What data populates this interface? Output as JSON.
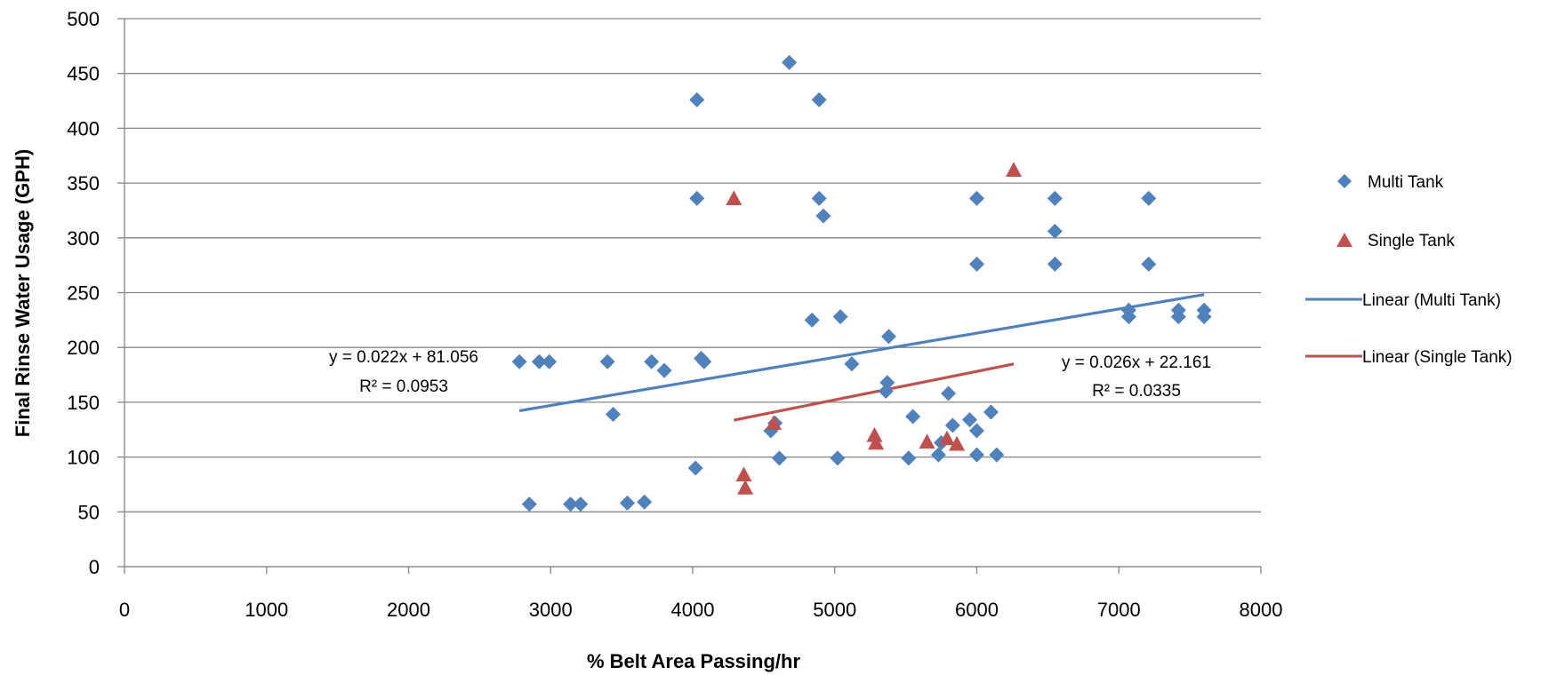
{
  "chart_data": {
    "type": "scatter",
    "xlabel": "% Belt Area Passing/hr",
    "ylabel": "Final Rinse Water Usage (GPH)",
    "xlim": [
      0,
      8000
    ],
    "ylim": [
      0,
      500
    ],
    "xticks": [
      "0",
      "1000",
      "2000",
      "3000",
      "4000",
      "5000",
      "6000",
      "7000",
      "8000"
    ],
    "yticks": [
      "0",
      "50",
      "100",
      "150",
      "200",
      "250",
      "300",
      "350",
      "400",
      "450",
      "500"
    ],
    "grid": "horizontal",
    "legend_position": "right",
    "series": [
      {
        "name": "Multi Tank",
        "marker": "diamond",
        "color": "#4F81BD",
        "points": [
          [
            2780,
            187
          ],
          [
            2850,
            57
          ],
          [
            2920,
            187
          ],
          [
            2990,
            187
          ],
          [
            3140,
            57
          ],
          [
            3210,
            57
          ],
          [
            3400,
            187
          ],
          [
            3440,
            139
          ],
          [
            3540,
            58
          ],
          [
            3660,
            59
          ],
          [
            3710,
            187
          ],
          [
            3800,
            179
          ],
          [
            4020,
            90
          ],
          [
            4030,
            426
          ],
          [
            4030,
            336
          ],
          [
            4060,
            190
          ],
          [
            4080,
            187
          ],
          [
            4550,
            124
          ],
          [
            4580,
            131
          ],
          [
            4610,
            99
          ],
          [
            4680,
            460
          ],
          [
            4840,
            225
          ],
          [
            4890,
            426
          ],
          [
            4890,
            336
          ],
          [
            4920,
            320
          ],
          [
            5020,
            99
          ],
          [
            5040,
            228
          ],
          [
            5120,
            185
          ],
          [
            5360,
            160
          ],
          [
            5370,
            168
          ],
          [
            5380,
            210
          ],
          [
            5520,
            99
          ],
          [
            5550,
            137
          ],
          [
            5730,
            102
          ],
          [
            5750,
            113
          ],
          [
            5800,
            158
          ],
          [
            5830,
            129
          ],
          [
            5950,
            134
          ],
          [
            6000,
            336
          ],
          [
            6000,
            276
          ],
          [
            6000,
            124
          ],
          [
            6000,
            102
          ],
          [
            6100,
            141
          ],
          [
            6140,
            102
          ],
          [
            6550,
            336
          ],
          [
            6550,
            306
          ],
          [
            6550,
            276
          ],
          [
            7070,
            234
          ],
          [
            7070,
            228
          ],
          [
            7210,
            336
          ],
          [
            7210,
            276
          ],
          [
            7420,
            234
          ],
          [
            7420,
            228
          ],
          [
            7600,
            234
          ],
          [
            7600,
            228
          ]
        ]
      },
      {
        "name": "Single Tank",
        "marker": "triangle",
        "color": "#C0504D",
        "points": [
          [
            4290,
            336
          ],
          [
            4360,
            84
          ],
          [
            4370,
            72
          ],
          [
            4570,
            131
          ],
          [
            5280,
            120
          ],
          [
            5290,
            113
          ],
          [
            5650,
            114
          ],
          [
            5790,
            117
          ],
          [
            5860,
            112
          ],
          [
            6260,
            362
          ]
        ]
      }
    ],
    "trendlines": [
      {
        "name": "Linear (Multi Tank)",
        "color": "#4F81BD",
        "x_range": [
          2780,
          7600
        ],
        "equation": "y = 0.022x + 81.056",
        "r2": "R² = 0.0953",
        "slope": 0.022,
        "intercept": 81.056
      },
      {
        "name": "Linear (Single Tank)",
        "color": "#C0504D",
        "x_range": [
          4290,
          6260
        ],
        "equation": "y = 0.026x + 22.161",
        "r2": "R² = 0.0335",
        "slope": 0.026,
        "intercept": 22.161
      }
    ]
  }
}
